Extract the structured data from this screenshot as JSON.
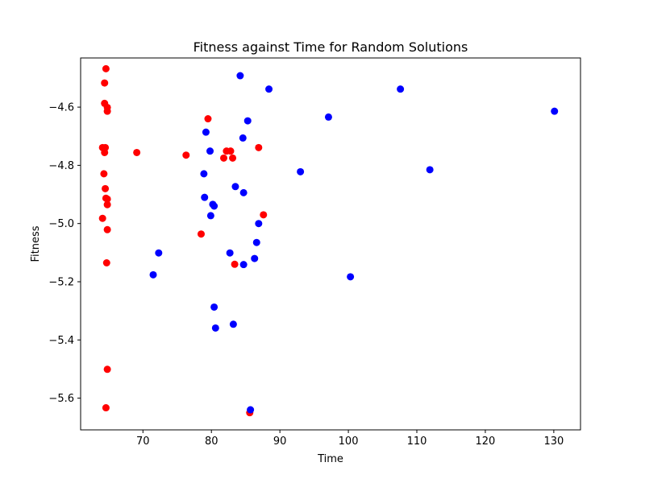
{
  "chart_data": {
    "type": "scatter",
    "title": "Fitness against Time for Random Solutions",
    "xlabel": "Time",
    "ylabel": "Fitness",
    "xlim": [
      60.9,
      133.9
    ],
    "ylim": [
      -5.709,
      -4.431
    ],
    "xticks": [
      70,
      80,
      90,
      100,
      110,
      120,
      130
    ],
    "yticks": [
      -5.6,
      -5.4,
      -5.2,
      -5.0,
      -4.8,
      -4.6
    ],
    "grid": false,
    "colors": {
      "red": "#ff0000",
      "blue": "#0000ff"
    },
    "series": [
      {
        "color": "#ff0000",
        "points": [
          [
            64.6,
            -4.468
          ],
          [
            64.4,
            -4.517
          ],
          [
            64.4,
            -4.587
          ],
          [
            64.8,
            -4.601
          ],
          [
            64.8,
            -4.614
          ],
          [
            64.1,
            -4.739
          ],
          [
            64.5,
            -4.739
          ],
          [
            64.4,
            -4.756
          ],
          [
            64.3,
            -4.829
          ],
          [
            64.5,
            -4.88
          ],
          [
            64.6,
            -4.913
          ],
          [
            64.8,
            -4.916
          ],
          [
            64.8,
            -4.935
          ],
          [
            64.1,
            -4.982
          ],
          [
            64.8,
            -5.021
          ],
          [
            64.7,
            -5.135
          ],
          [
            64.8,
            -5.501
          ],
          [
            64.6,
            -5.633
          ],
          [
            69.1,
            -4.756
          ],
          [
            76.3,
            -4.765
          ],
          [
            78.5,
            -5.036
          ],
          [
            79.5,
            -4.64
          ],
          [
            81.8,
            -4.775
          ],
          [
            82.2,
            -4.751
          ],
          [
            82.8,
            -4.751
          ],
          [
            83.1,
            -4.775
          ],
          [
            83.4,
            -5.14
          ],
          [
            85.6,
            -5.65
          ],
          [
            86.9,
            -4.739
          ],
          [
            87.6,
            -4.97
          ]
        ]
      },
      {
        "color": "#0000ff",
        "points": [
          [
            71.5,
            -5.176
          ],
          [
            72.3,
            -5.101
          ],
          [
            78.9,
            -4.829
          ],
          [
            79.0,
            -4.91
          ],
          [
            79.2,
            -4.686
          ],
          [
            79.8,
            -4.751
          ],
          [
            79.9,
            -4.973
          ],
          [
            80.2,
            -4.934
          ],
          [
            80.4,
            -4.94
          ],
          [
            80.4,
            -5.287
          ],
          [
            80.6,
            -5.359
          ],
          [
            82.7,
            -5.101
          ],
          [
            83.2,
            -5.346
          ],
          [
            83.5,
            -4.873
          ],
          [
            84.2,
            -4.492
          ],
          [
            84.6,
            -4.706
          ],
          [
            84.7,
            -4.894
          ],
          [
            84.7,
            -5.141
          ],
          [
            85.3,
            -4.647
          ],
          [
            85.7,
            -5.64
          ],
          [
            86.3,
            -5.12
          ],
          [
            86.6,
            -5.065
          ],
          [
            86.9,
            -5.0
          ],
          [
            88.4,
            -4.538
          ],
          [
            93.0,
            -4.822
          ],
          [
            97.1,
            -4.634
          ],
          [
            100.3,
            -5.183
          ],
          [
            107.6,
            -4.538
          ],
          [
            111.9,
            -4.815
          ],
          [
            130.1,
            -4.614
          ]
        ]
      }
    ]
  }
}
